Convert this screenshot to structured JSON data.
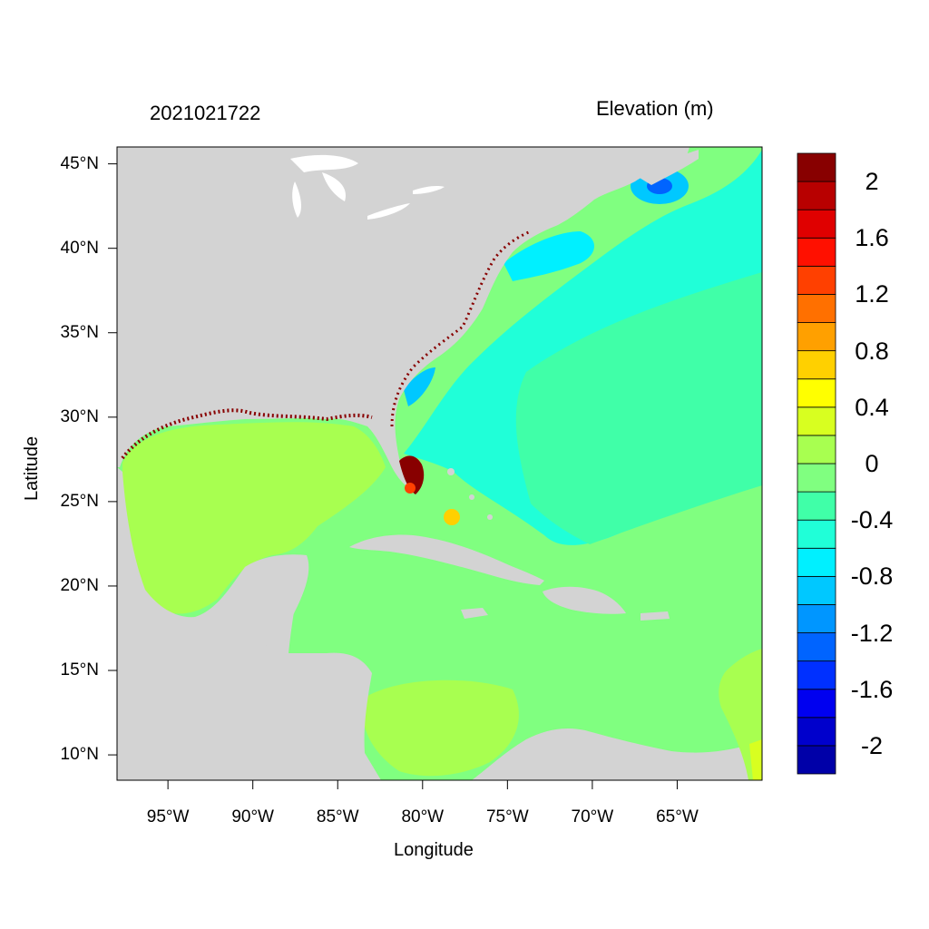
{
  "header": {
    "date": "2021021722",
    "variable": "Elevation (m)"
  },
  "axes": {
    "xlabel": "Longitude",
    "ylabel": "Latitude",
    "xlim": [
      -98,
      -60
    ],
    "ylim": [
      8.5,
      46
    ],
    "x_ticks": [
      {
        "value": -95,
        "label": "95°W"
      },
      {
        "value": -90,
        "label": "90°W"
      },
      {
        "value": -85,
        "label": "85°W"
      },
      {
        "value": -80,
        "label": "80°W"
      },
      {
        "value": -75,
        "label": "75°W"
      },
      {
        "value": -70,
        "label": "70°W"
      },
      {
        "value": -65,
        "label": "65°W"
      }
    ],
    "y_ticks": [
      {
        "value": 45,
        "label": "45°N"
      },
      {
        "value": 40,
        "label": "40°N"
      },
      {
        "value": 35,
        "label": "35°N"
      },
      {
        "value": 30,
        "label": "30°N"
      },
      {
        "value": 25,
        "label": "25°N"
      },
      {
        "value": 20,
        "label": "20°N"
      },
      {
        "value": 15,
        "label": "15°N"
      },
      {
        "value": 10,
        "label": "10°N"
      }
    ]
  },
  "colorbar": {
    "levels": [
      -2.2,
      -2.0,
      -1.8,
      -1.6,
      -1.4,
      -1.2,
      -1.0,
      -0.8,
      -0.6,
      -0.4,
      -0.2,
      0.0,
      0.2,
      0.4,
      0.6,
      0.8,
      1.0,
      1.2,
      1.4,
      1.6,
      1.8,
      2.0,
      2.2
    ],
    "colors": [
      "#0000a8",
      "#0000cc",
      "#0000f0",
      "#0030ff",
      "#0064ff",
      "#0096ff",
      "#00c8ff",
      "#00f0ff",
      "#20ffd8",
      "#40ffa8",
      "#80ff80",
      "#a8ff50",
      "#d8ff20",
      "#ffff00",
      "#ffd000",
      "#ffa000",
      "#ff7000",
      "#ff4000",
      "#ff1000",
      "#e00000",
      "#b80000",
      "#880000"
    ],
    "labels": [
      {
        "value": 2.0,
        "label": "2"
      },
      {
        "value": 1.6,
        "label": "1.6"
      },
      {
        "value": 1.2,
        "label": "1.2"
      },
      {
        "value": 0.8,
        "label": "0.8"
      },
      {
        "value": 0.4,
        "label": "0.4"
      },
      {
        "value": 0.0,
        "label": "0"
      },
      {
        "value": -0.4,
        "label": "-0.4"
      },
      {
        "value": -0.8,
        "label": "-0.8"
      },
      {
        "value": -1.2,
        "label": "-1.2"
      },
      {
        "value": -1.6,
        "label": "-1.6"
      },
      {
        "value": -2.0,
        "label": "-2"
      }
    ]
  },
  "map_colors": {
    "land": "#d3d3d3",
    "ocean": "#80ff80",
    "gulf": "#a8ff50",
    "atlantic": "#20ffd8",
    "shelf": "#00f0ff",
    "flood": "#880000",
    "lakes": "#ffffff"
  }
}
